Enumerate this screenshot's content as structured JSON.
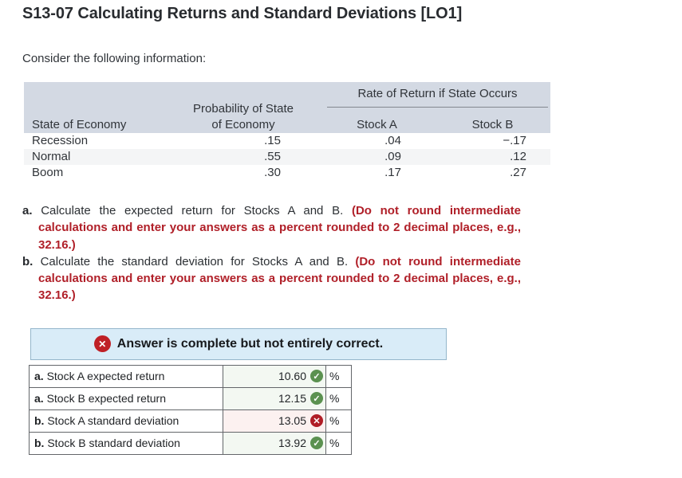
{
  "page": {
    "title": "S13-07 Calculating Returns and Standard Deviations [LO1]",
    "intro": "Consider the following information:"
  },
  "info_table": {
    "group_header": "Rate of Return if State Occurs",
    "state_header": "State of Economy",
    "prob_header_line1": "Probability of State",
    "prob_header_line2": "of Economy",
    "stock_a_header": "Stock A",
    "stock_b_header": "Stock B",
    "rows": [
      {
        "state": "Recession",
        "prob": ".15",
        "stock_a": ".04",
        "stock_b": "−.17"
      },
      {
        "state": "Normal",
        "prob": ".55",
        "stock_a": ".09",
        "stock_b": ".12"
      },
      {
        "state": "Boom",
        "prob": ".30",
        "stock_a": ".17",
        "stock_b": ".27"
      }
    ]
  },
  "questions": [
    {
      "label": "a.",
      "text": "Calculate the expected return for Stocks A and B.",
      "instruction": "(Do not round intermediate calculations and enter your answers as a percent rounded to 2 decimal places, e.g., 32.16.)"
    },
    {
      "label": "b.",
      "text": "Calculate the standard deviation for Stocks A and B.",
      "instruction": "(Do not round intermediate calculations and enter your answers as a percent rounded to 2 decimal places, e.g., 32.16.)"
    }
  ],
  "feedback": {
    "icon_glyph": "✕",
    "message": "Answer is complete but not entirely correct."
  },
  "answer_table": {
    "unit": "%",
    "rows": [
      {
        "prefix": "a.",
        "label": "Stock A expected return",
        "value": "10.60",
        "status": "correct"
      },
      {
        "prefix": "a.",
        "label": "Stock B expected return",
        "value": "12.15",
        "status": "correct"
      },
      {
        "prefix": "b.",
        "label": "Stock A standard deviation",
        "value": "13.05",
        "status": "incorrect"
      },
      {
        "prefix": "b.",
        "label": "Stock B standard deviation",
        "value": "13.92",
        "status": "correct"
      }
    ]
  },
  "colors": {
    "header_bg": "#d3d9e3",
    "red_instruction_text": "#b01f28",
    "banner_bg": "#d9ecf8",
    "banner_border": "#94b6cb",
    "correct_green": "#5b9150",
    "incorrect_red": "#b01d26"
  }
}
